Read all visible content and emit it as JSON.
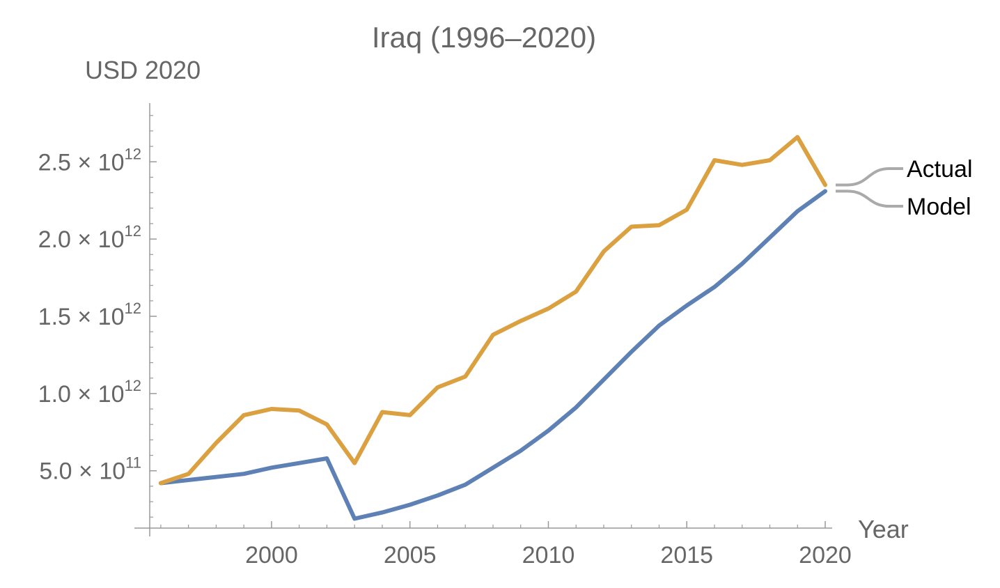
{
  "chart_data": {
    "type": "line",
    "title": "Iraq (1996–2020)",
    "ylabel": "USD 2020",
    "xlabel": "Year",
    "xlim": [
      1995.6,
      2020
    ],
    "ylim": [
      120000000000,
      2880000000000
    ],
    "x_ticks": [
      2000,
      2005,
      2010,
      2015,
      2020
    ],
    "y_ticks": [
      {
        "value": 500000000000,
        "mantissa": "5.0",
        "times": "×",
        "base": "10",
        "exponent": "11"
      },
      {
        "value": 1000000000000,
        "mantissa": "1.0",
        "times": "×",
        "base": "10",
        "exponent": "12"
      },
      {
        "value": 1500000000000,
        "mantissa": "1.5",
        "times": "×",
        "base": "10",
        "exponent": "12"
      },
      {
        "value": 2000000000000,
        "mantissa": "2.0",
        "times": "×",
        "base": "10",
        "exponent": "12"
      },
      {
        "value": 2500000000000,
        "mantissa": "2.5",
        "times": "×",
        "base": "10",
        "exponent": "12"
      }
    ],
    "grid": false,
    "legend_position": "right",
    "x": [
      1996,
      1997,
      1998,
      1999,
      2000,
      2001,
      2002,
      2003,
      2004,
      2005,
      2006,
      2007,
      2008,
      2009,
      2010,
      2011,
      2012,
      2013,
      2014,
      2015,
      2016,
      2017,
      2018,
      2019,
      2020
    ],
    "series": [
      {
        "name": "Actual",
        "color": "#dba040",
        "values": [
          420000000000,
          480000000000,
          680000000000,
          860000000000,
          900000000000,
          890000000000,
          800000000000,
          550000000000,
          880000000000,
          860000000000,
          1040000000000,
          1110000000000,
          1380000000000,
          1470000000000,
          1550000000000,
          1660000000000,
          1920000000000,
          2080000000000,
          2090000000000,
          2190000000000,
          2510000000000,
          2480000000000,
          2510000000000,
          2660000000000,
          2350000000000
        ]
      },
      {
        "name": "Model",
        "color": "#5e81b5",
        "values": [
          420000000000,
          440000000000,
          460000000000,
          480000000000,
          520000000000,
          550000000000,
          580000000000,
          190000000000,
          230000000000,
          280000000000,
          340000000000,
          410000000000,
          520000000000,
          630000000000,
          760000000000,
          910000000000,
          1090000000000,
          1270000000000,
          1440000000000,
          1570000000000,
          1690000000000,
          1840000000000,
          2010000000000,
          2180000000000,
          2310000000000
        ]
      }
    ]
  }
}
